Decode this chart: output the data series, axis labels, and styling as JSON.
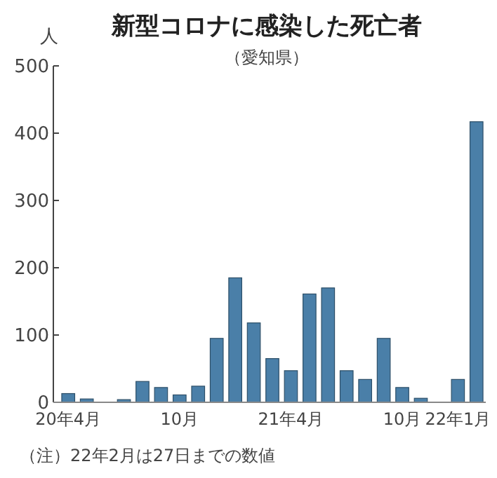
{
  "chart_data": {
    "type": "bar",
    "title": "新型コロナに感染した死亡者",
    "subtitle": "（愛知県）",
    "ylabel": "人",
    "categories": [
      "20年4月",
      null,
      null,
      null,
      null,
      null,
      "10月",
      null,
      null,
      null,
      null,
      null,
      "21年4月",
      null,
      null,
      null,
      null,
      null,
      "10月",
      null,
      null,
      "22年1月",
      null
    ],
    "values": [
      13,
      5,
      0,
      4,
      31,
      22,
      11,
      24,
      95,
      185,
      118,
      65,
      47,
      161,
      170,
      47,
      34,
      95,
      22,
      6,
      0,
      34,
      417
    ],
    "color": "#4a7fa8",
    "ylim": [
      0,
      500
    ],
    "yticks": [
      0,
      100,
      200,
      300,
      400,
      500
    ],
    "grid": false,
    "annotations": [
      "（注）22年2月は27日までの数値"
    ]
  }
}
